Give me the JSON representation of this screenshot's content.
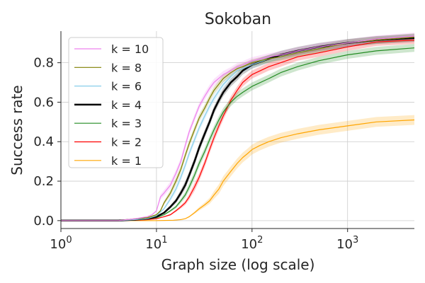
{
  "chart_data": {
    "type": "line",
    "title": "Sokoban",
    "xlabel": "Graph size (log scale)",
    "ylabel": "Success rate",
    "xscale": "log",
    "xlim": [
      1,
      5000
    ],
    "ylim": [
      -0.04,
      0.96
    ],
    "xticks": [
      {
        "value": 1,
        "base": "10",
        "exp": "0"
      },
      {
        "value": 10,
        "base": "10",
        "exp": "1"
      },
      {
        "value": 100,
        "base": "10",
        "exp": "2"
      },
      {
        "value": 1000,
        "base": "10",
        "exp": "3"
      }
    ],
    "yticks": [
      {
        "value": 0.0,
        "label": "0.0"
      },
      {
        "value": 0.2,
        "label": "0.2"
      },
      {
        "value": 0.4,
        "label": "0.4"
      },
      {
        "value": 0.6,
        "label": "0.6"
      },
      {
        "value": 0.8,
        "label": "0.8"
      }
    ],
    "grid": true,
    "legend_position": "top-left",
    "series": [
      {
        "name": "k = 10",
        "color": "#ee82ee",
        "band": 0.018,
        "x": [
          1,
          4,
          6,
          8,
          9,
          10,
          11,
          12,
          14,
          16,
          18,
          20,
          22,
          25,
          28,
          32,
          36,
          40,
          50,
          60,
          70,
          80,
          100,
          150,
          200,
          300,
          500,
          1000,
          2000,
          5000
        ],
        "y": [
          0.0,
          0.0,
          0.01,
          0.02,
          0.03,
          0.05,
          0.12,
          0.14,
          0.18,
          0.24,
          0.3,
          0.38,
          0.45,
          0.52,
          0.58,
          0.63,
          0.67,
          0.7,
          0.74,
          0.76,
          0.78,
          0.79,
          0.81,
          0.83,
          0.84,
          0.86,
          0.88,
          0.9,
          0.92,
          0.935
        ]
      },
      {
        "name": "k = 8",
        "color": "#808000",
        "band": 0.018,
        "x": [
          1,
          4,
          6,
          8,
          10,
          11,
          12,
          14,
          16,
          18,
          20,
          22,
          25,
          28,
          32,
          36,
          40,
          50,
          60,
          70,
          80,
          100,
          150,
          200,
          300,
          500,
          1000,
          2000,
          5000
        ],
        "y": [
          0.0,
          0.0,
          0.01,
          0.015,
          0.03,
          0.05,
          0.09,
          0.14,
          0.2,
          0.26,
          0.33,
          0.39,
          0.46,
          0.52,
          0.57,
          0.62,
          0.66,
          0.72,
          0.75,
          0.77,
          0.78,
          0.8,
          0.82,
          0.83,
          0.85,
          0.87,
          0.9,
          0.915,
          0.93
        ]
      },
      {
        "name": "k = 6",
        "color": "#87ceeb",
        "band": 0.018,
        "x": [
          1,
          4,
          6,
          8,
          10,
          12,
          14,
          16,
          18,
          20,
          22,
          25,
          28,
          32,
          36,
          40,
          50,
          60,
          70,
          80,
          100,
          150,
          200,
          300,
          500,
          1000,
          2000,
          5000
        ],
        "y": [
          0.0,
          0.0,
          0.005,
          0.01,
          0.025,
          0.06,
          0.11,
          0.16,
          0.22,
          0.28,
          0.34,
          0.41,
          0.47,
          0.53,
          0.58,
          0.62,
          0.69,
          0.73,
          0.76,
          0.77,
          0.79,
          0.82,
          0.83,
          0.85,
          0.87,
          0.9,
          0.915,
          0.93
        ]
      },
      {
        "name": "k = 4",
        "color": "#000000",
        "band": 0.02,
        "bold": true,
        "x": [
          1,
          4,
          6,
          8,
          10,
          12,
          14,
          16,
          18,
          20,
          22,
          25,
          28,
          32,
          36,
          40,
          45,
          50,
          60,
          70,
          80,
          100,
          150,
          200,
          300,
          500,
          1000,
          2000,
          5000
        ],
        "y": [
          0.0,
          0.0,
          0.005,
          0.01,
          0.02,
          0.04,
          0.07,
          0.1,
          0.14,
          0.18,
          0.23,
          0.3,
          0.37,
          0.44,
          0.5,
          0.56,
          0.61,
          0.65,
          0.7,
          0.73,
          0.76,
          0.79,
          0.82,
          0.84,
          0.86,
          0.88,
          0.9,
          0.915,
          0.925
        ]
      },
      {
        "name": "k = 3",
        "color": "#228b22",
        "band": 0.02,
        "x": [
          1,
          4,
          6,
          8,
          10,
          12,
          14,
          16,
          18,
          20,
          22,
          25,
          28,
          32,
          36,
          40,
          45,
          50,
          60,
          70,
          80,
          100,
          150,
          200,
          300,
          500,
          1000,
          2000,
          5000
        ],
        "y": [
          0.0,
          0.0,
          0.003,
          0.008,
          0.015,
          0.03,
          0.05,
          0.07,
          0.1,
          0.13,
          0.17,
          0.23,
          0.29,
          0.35,
          0.41,
          0.46,
          0.51,
          0.55,
          0.6,
          0.63,
          0.65,
          0.68,
          0.72,
          0.75,
          0.78,
          0.81,
          0.84,
          0.86,
          0.875
        ]
      },
      {
        "name": "k = 2",
        "color": "#ff0000",
        "band": 0.02,
        "x": [
          1,
          4,
          6,
          8,
          10,
          12,
          14,
          16,
          18,
          20,
          22,
          25,
          28,
          32,
          36,
          40,
          45,
          50,
          60,
          70,
          80,
          100,
          150,
          200,
          300,
          500,
          1000,
          2000,
          5000
        ],
        "y": [
          0.0,
          0.0,
          0.002,
          0.005,
          0.01,
          0.02,
          0.03,
          0.05,
          0.07,
          0.09,
          0.12,
          0.17,
          0.22,
          0.29,
          0.36,
          0.42,
          0.48,
          0.53,
          0.61,
          0.66,
          0.7,
          0.74,
          0.78,
          0.8,
          0.83,
          0.85,
          0.88,
          0.905,
          0.915
        ]
      },
      {
        "name": "k = 1",
        "color": "#ffa500",
        "band": 0.025,
        "x": [
          1,
          10,
          15,
          18,
          20,
          22,
          25,
          28,
          32,
          36,
          40,
          45,
          50,
          60,
          70,
          80,
          90,
          100,
          120,
          150,
          200,
          300,
          500,
          1000,
          2000,
          5000
        ],
        "y": [
          0.0,
          0.0,
          0.002,
          0.005,
          0.01,
          0.02,
          0.04,
          0.06,
          0.08,
          0.1,
          0.13,
          0.16,
          0.2,
          0.25,
          0.29,
          0.32,
          0.34,
          0.36,
          0.38,
          0.4,
          0.42,
          0.44,
          0.46,
          0.48,
          0.5,
          0.51
        ]
      }
    ]
  }
}
